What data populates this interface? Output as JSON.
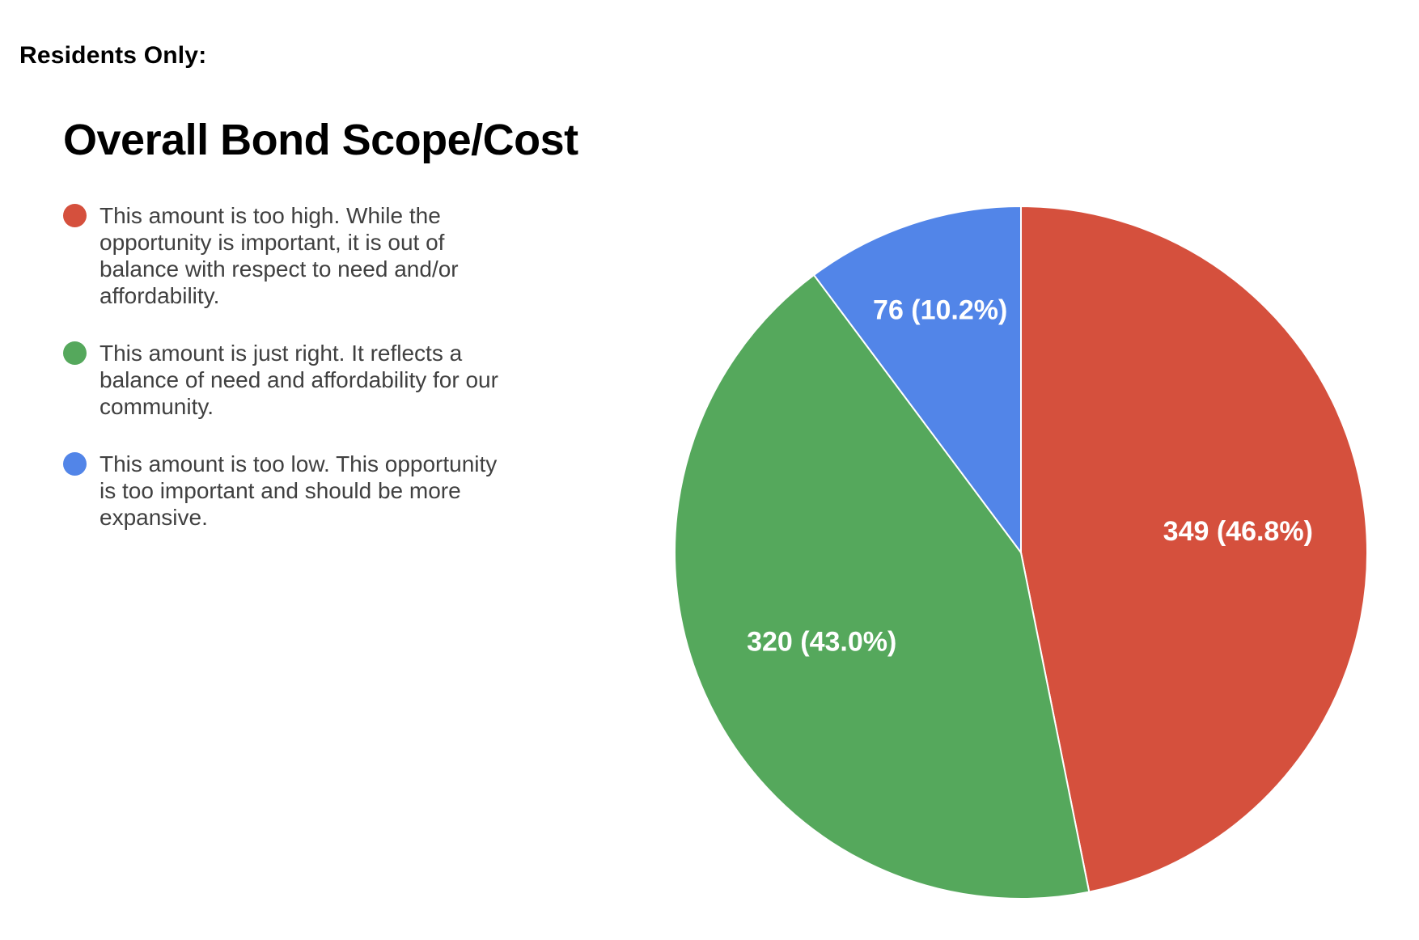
{
  "page": {
    "header": "Residents Only:"
  },
  "chart": {
    "title": "Overall Bond Scope/Cost",
    "legend": [
      {
        "color": "#d5503d",
        "lines": [
          "This amount is too high. While the",
          "opportunity is important, it is out of",
          "balance with respect to need and/or",
          "affordability."
        ]
      },
      {
        "color": "#55a85c",
        "lines": [
          "This amount is just right. It reflects a",
          "balance of need and affordability for our",
          "community."
        ]
      },
      {
        "color": "#5285e8",
        "lines": [
          "This amount is too low. This opportunity",
          "is too important and should be more",
          "expansive."
        ]
      }
    ]
  },
  "chart_data": {
    "type": "pie",
    "title": "Overall Bond Scope/Cost",
    "legend_position": "left",
    "labels_inside": true,
    "start_angle_deg": 0,
    "direction": "clockwise",
    "slices": [
      {
        "label": "This amount is too high. While the opportunity is important, it is out of balance with respect to need and/or affordability.",
        "value": 349,
        "pct": 46.8,
        "display_label": "349 (46.8%)",
        "color": "#d5503d"
      },
      {
        "label": "This amount is just right. It reflects a balance of need and affordability for our community.",
        "value": 320,
        "pct": 43.0,
        "display_label": "320 (43.0%)",
        "color": "#55a85c"
      },
      {
        "label": "This amount is too low. This opportunity is too important and should be more expansive.",
        "value": 76,
        "pct": 10.2,
        "display_label": "76 (10.2%)",
        "color": "#5285e8"
      }
    ]
  }
}
